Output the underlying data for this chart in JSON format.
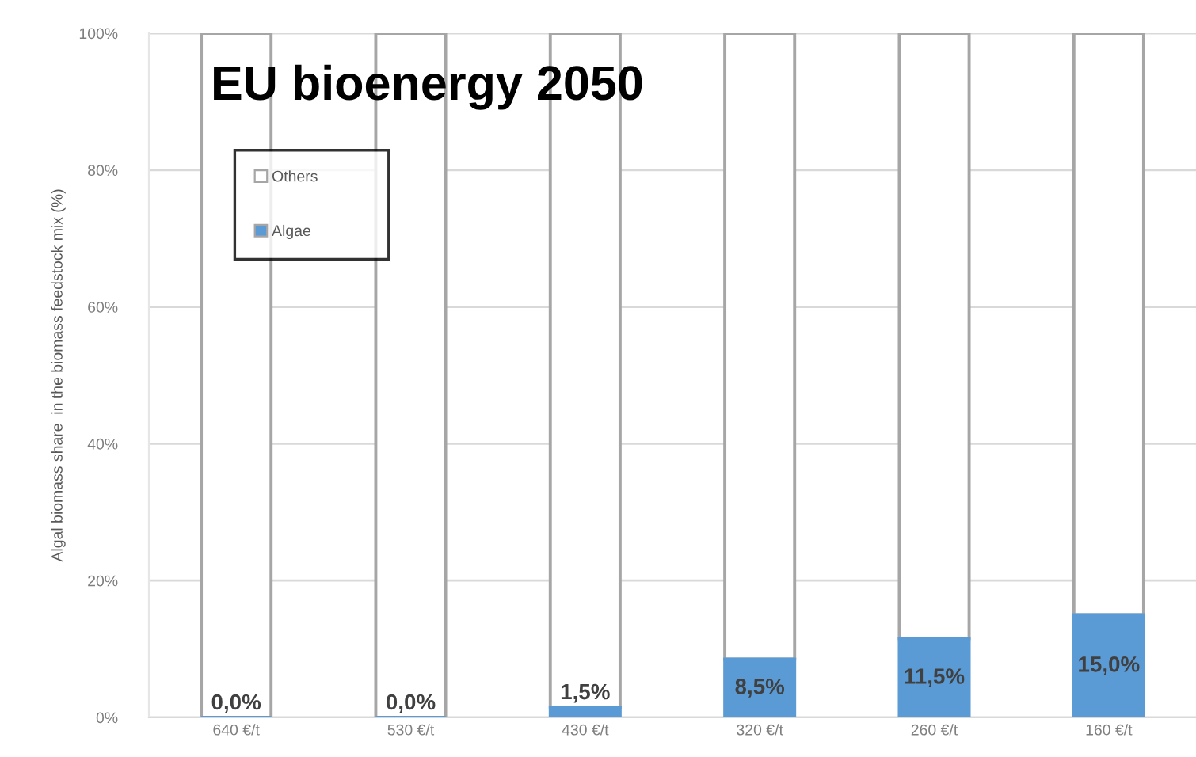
{
  "chart_data": {
    "type": "bar",
    "title": "EU bioenergy 2050",
    "ylabel": "Algal biomass share  in the biomass feedstock mix (%)",
    "categories": [
      "640 €/t",
      "530 €/t",
      "430 €/t",
      "320 €/t",
      "260 €/t",
      "160 €/t"
    ],
    "stacked": true,
    "series": [
      {
        "name": "Algae",
        "color": "#5b9bd5",
        "values": [
          0,
          0,
          1.5,
          8.5,
          11.5,
          15.0
        ],
        "value_labels": [
          "0,0%",
          "0,0%",
          "1,5%",
          "8,5%",
          "11,5%",
          "15,0%"
        ]
      },
      {
        "name": "Others",
        "color": "#ffffff",
        "values": [
          100,
          100,
          98.5,
          91.5,
          88.5,
          85.0
        ]
      }
    ],
    "ylim": [
      0,
      100
    ],
    "yticks": [
      {
        "value": 0,
        "label": "0%"
      },
      {
        "value": 20,
        "label": "20%"
      },
      {
        "value": 40,
        "label": "40%"
      },
      {
        "value": 60,
        "label": "60%"
      },
      {
        "value": 80,
        "label": "80%"
      },
      {
        "value": 100,
        "label": "100%"
      }
    ],
    "grid": "y",
    "legend": "top left"
  }
}
